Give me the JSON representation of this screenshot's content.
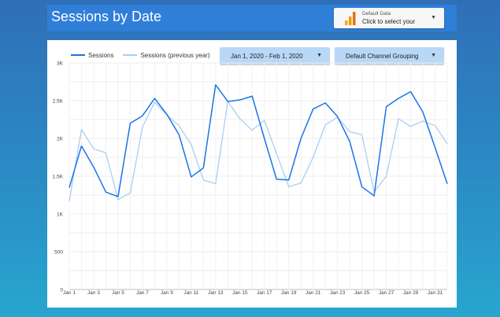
{
  "header": {
    "title": "Sessions by Date",
    "data_source": {
      "label": "Default Data",
      "cta": "Click to select your",
      "icon": "bar-chart-icon"
    }
  },
  "filters": {
    "date_range": "Jan 1, 2020 - Feb 1, 2020",
    "dimension": "Default Channel Grouping"
  },
  "colors": {
    "header_bg": "#2f7fd8",
    "series_current": "#1a73e8",
    "series_previous": "#a8cef3",
    "dropdown_bg": "#b9d7f6"
  },
  "chart_data": {
    "type": "line",
    "legend_position": "top-left",
    "grid": true,
    "x": [
      "Jan 1",
      "Jan 2",
      "Jan 3",
      "Jan 4",
      "Jan 5",
      "Jan 6",
      "Jan 7",
      "Jan 8",
      "Jan 9",
      "Jan 10",
      "Jan 11",
      "Jan 12",
      "Jan 13",
      "Jan 14",
      "Jan 15",
      "Jan 16",
      "Jan 17",
      "Jan 18",
      "Jan 19",
      "Jan 20",
      "Jan 21",
      "Jan 22",
      "Jan 23",
      "Jan 24",
      "Jan 25",
      "Jan 26",
      "Jan 27",
      "Jan 28",
      "Jan 29",
      "Jan 30",
      "Jan 31",
      "Feb 1"
    ],
    "x_tick_labels": [
      "Jan 1",
      "Jan 3",
      "Jan 5",
      "Jan 7",
      "Jan 9",
      "Jan 11",
      "Jan 13",
      "Jan 15",
      "Jan 17",
      "Jan 19",
      "Jan 21",
      "Jan 23",
      "Jan 25",
      "Jan 27",
      "Jan 29",
      "Jan 31"
    ],
    "y_tick_labels": [
      "0",
      "500",
      "1K",
      "1.5K",
      "2K",
      "2.5K",
      "3K"
    ],
    "ylim": [
      0,
      3000
    ],
    "series": [
      {
        "name": "Sessions",
        "values": [
          1350,
          1900,
          1620,
          1290,
          1230,
          2200,
          2300,
          2530,
          2320,
          2050,
          1490,
          1610,
          2710,
          2490,
          2510,
          2560,
          2000,
          1460,
          1450,
          2000,
          2390,
          2470,
          2290,
          1960,
          1360,
          1240,
          2420,
          2530,
          2620,
          2350,
          1880,
          1400
        ]
      },
      {
        "name": "Sessions (previous year)",
        "values": [
          1170,
          2120,
          1860,
          1810,
          1190,
          1280,
          2150,
          2480,
          2310,
          2170,
          1920,
          1450,
          1400,
          2490,
          2260,
          2110,
          2240,
          1800,
          1360,
          1410,
          1750,
          2180,
          2280,
          2090,
          2050,
          1290,
          1500,
          2260,
          2160,
          2230,
          2170,
          1930
        ]
      }
    ]
  }
}
